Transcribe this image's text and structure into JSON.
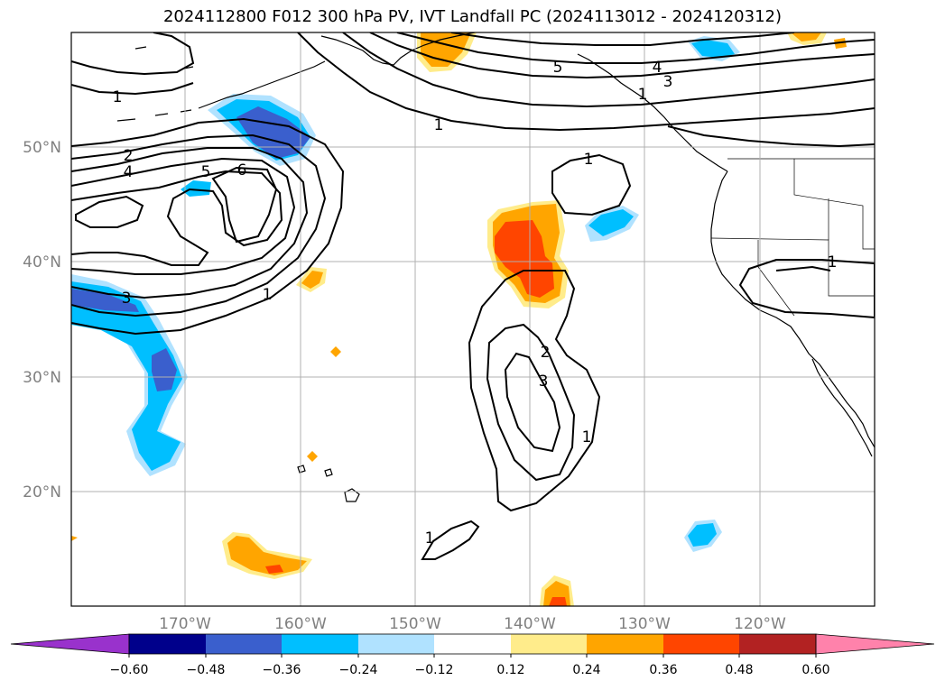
{
  "title": "2024112800 F012 300 hPa PV, IVT Landfall PC (2024113012 - 2024120312)",
  "lat_labels": [
    "50°N",
    "40°N",
    "30°N",
    "20°N"
  ],
  "lon_labels": [
    "170°W",
    "160°W",
    "150°W",
    "140°W",
    "130°W",
    "120°W"
  ],
  "colorbar": {
    "ticks": [
      "−0.60",
      "−0.48",
      "−0.36",
      "−0.24",
      "−0.12",
      "0.12",
      "0.24",
      "0.36",
      "0.48",
      "0.60"
    ],
    "colors": [
      "#9932cc",
      "#00008b",
      "#3a5fcd",
      "#00bfff",
      "#b0e2ff",
      "#ffffff",
      "#ffec8b",
      "#ffa500",
      "#ff4500",
      "#b22222",
      "#ff82ab"
    ]
  },
  "contour_labels": [
    "1",
    "2",
    "4",
    "5",
    "6",
    "1",
    "3",
    "5",
    "4",
    "3",
    "1",
    "1",
    "1",
    "2",
    "3",
    "1",
    "1",
    "1"
  ]
}
